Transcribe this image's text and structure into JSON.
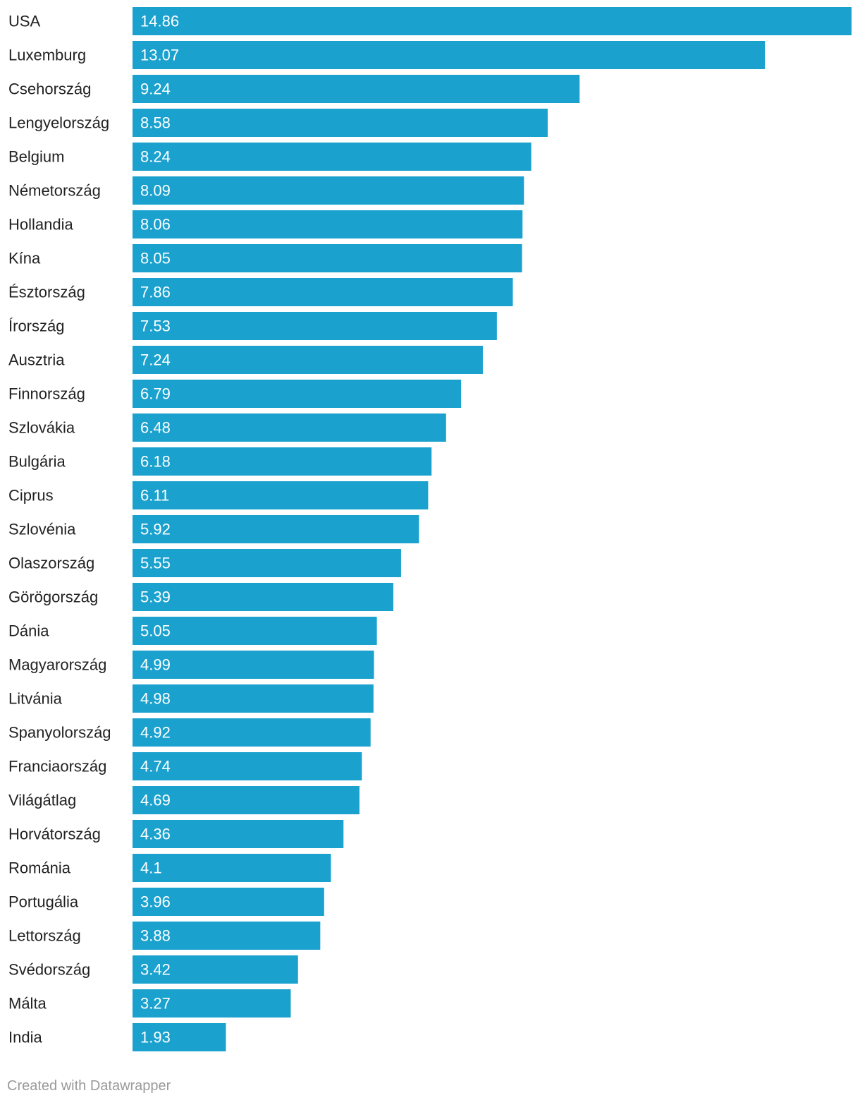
{
  "chart_data": {
    "type": "bar",
    "orientation": "horizontal",
    "title": "",
    "xlabel": "",
    "ylabel": "",
    "xlim": [
      0,
      14.86
    ],
    "grid": false,
    "bar_color": "#1aa1ce",
    "categories": [
      "USA",
      "Luxemburg",
      "Csehország",
      "Lengyelország",
      "Belgium",
      "Németország",
      "Hollandia",
      "Kína",
      "Észtország",
      "Írország",
      "Ausztria",
      "Finnország",
      "Szlovákia",
      "Bulgária",
      "Ciprus",
      "Szlovénia",
      "Olaszország",
      "Görögország",
      "Dánia",
      "Magyarország",
      "Litvánia",
      "Spanyolország",
      "Franciaország",
      "Világátlag",
      "Horvátország",
      "Románia",
      "Portugália",
      "Lettország",
      "Svédország",
      "Málta",
      "India"
    ],
    "values": [
      14.86,
      13.07,
      9.24,
      8.58,
      8.24,
      8.09,
      8.06,
      8.05,
      7.86,
      7.53,
      7.24,
      6.79,
      6.48,
      6.18,
      6.11,
      5.92,
      5.55,
      5.39,
      5.05,
      4.99,
      4.98,
      4.92,
      4.74,
      4.69,
      4.36,
      4.1,
      3.96,
      3.88,
      3.42,
      3.27,
      1.93
    ]
  },
  "footer": {
    "credit": "Created with Datawrapper"
  }
}
